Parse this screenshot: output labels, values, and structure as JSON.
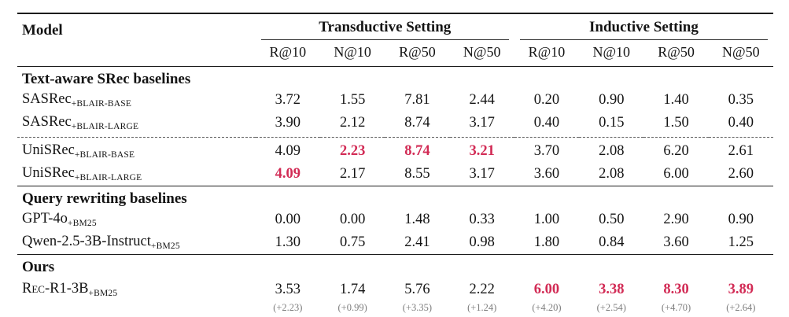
{
  "table": {
    "model_header": "Model",
    "groups": [
      {
        "label": "Transductive Setting"
      },
      {
        "label": "Inductive Setting"
      }
    ],
    "metric_headers": [
      "R@10",
      "N@10",
      "R@50",
      "N@50",
      "R@10",
      "N@10",
      "R@50",
      "N@50"
    ],
    "sections": [
      {
        "header": "Text-aware SRec baselines",
        "rows": [
          {
            "model": "SASRec",
            "sub": "+BLAIR-BASE",
            "values": [
              "3.72",
              "1.55",
              "7.81",
              "2.44",
              "0.20",
              "0.90",
              "1.40",
              "0.35"
            ]
          },
          {
            "model": "SASRec",
            "sub": "+BLAIR-LARGE",
            "values": [
              "3.90",
              "2.12",
              "8.74",
              "3.17",
              "0.40",
              "0.15",
              "1.50",
              "0.40"
            ]
          },
          {
            "model": "UniSRec",
            "sub": "+BLAIR-BASE",
            "values": [
              "4.09",
              "2.23",
              "8.74",
              "3.21",
              "3.70",
              "2.08",
              "6.20",
              "2.61"
            ]
          },
          {
            "model": "UniSRec",
            "sub": "+BLAIR-LARGE",
            "values": [
              "4.09",
              "2.17",
              "8.55",
              "3.17",
              "3.60",
              "2.08",
              "6.00",
              "2.60"
            ]
          }
        ]
      },
      {
        "header": "Query rewriting baselines",
        "rows": [
          {
            "model": "GPT-4o",
            "sub": "+BM25",
            "values": [
              "0.00",
              "0.00",
              "1.48",
              "0.33",
              "1.00",
              "0.50",
              "2.90",
              "0.90"
            ]
          },
          {
            "model": "Qwen-2.5-3B-Instruct",
            "sub": "+BM25",
            "values": [
              "1.30",
              "0.75",
              "2.41",
              "0.98",
              "1.80",
              "0.84",
              "3.60",
              "1.25"
            ]
          }
        ]
      },
      {
        "header": "Ours",
        "rows": [
          {
            "model": "Rec-R1-3B",
            "sub": "+BM25",
            "values": [
              "3.53",
              "1.74",
              "5.76",
              "2.22",
              "6.00",
              "3.38",
              "8.30",
              "3.89"
            ],
            "deltas": [
              "(+2.23)",
              "(+0.99)",
              "(+3.35)",
              "(+1.24)",
              "(+4.20)",
              "(+2.54)",
              "(+4.70)",
              "(+2.64)"
            ]
          }
        ]
      }
    ],
    "colors": {
      "highlight": "#d22b55",
      "delta_gray": "#7d7d7d"
    }
  }
}
